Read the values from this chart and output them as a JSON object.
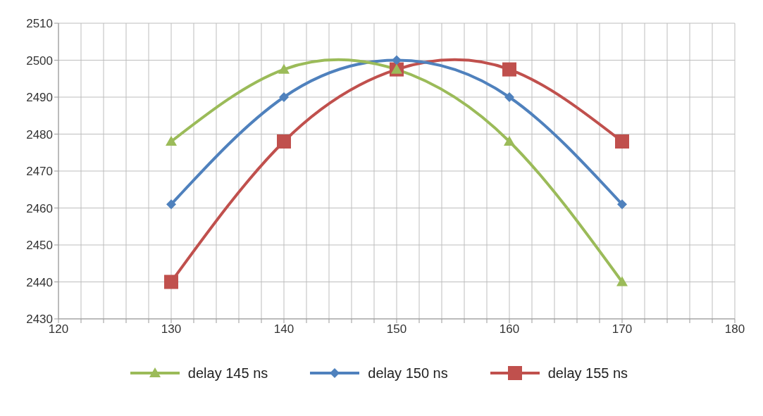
{
  "chart_data": {
    "type": "line",
    "x": [
      130,
      140,
      150,
      160,
      170
    ],
    "series": [
      {
        "name": "delay 145 ns",
        "color": "#9bbb59",
        "marker": "triangle",
        "values": [
          2478,
          2497.5,
          2497.5,
          2478,
          2440
        ]
      },
      {
        "name": "delay 150 ns",
        "color": "#4f81bd",
        "marker": "diamond",
        "values": [
          2461,
          2490,
          2500,
          2490,
          2461
        ]
      },
      {
        "name": "delay 155 ns",
        "color": "#c0504d",
        "marker": "square",
        "values": [
          2440,
          2478,
          2497.5,
          2497.5,
          2478
        ]
      }
    ],
    "xlim": [
      120,
      180
    ],
    "xticks": [
      120,
      {
        "value": 122,
        "label": null
      },
      {
        "value": 124,
        "label": null
      },
      {
        "value": 126,
        "label": null
      },
      {
        "value": 128,
        "label": null
      },
      130,
      {
        "value": 132,
        "label": null
      },
      {
        "value": 134,
        "label": null
      },
      {
        "value": 136,
        "label": null
      },
      {
        "value": 138,
        "label": null
      },
      140,
      {
        "value": 142,
        "label": null
      },
      {
        "value": 144,
        "label": null
      },
      {
        "value": 146,
        "label": null
      },
      {
        "value": 148,
        "label": null
      },
      150,
      {
        "value": 152,
        "label": null
      },
      {
        "value": 154,
        "label": null
      },
      {
        "value": 156,
        "label": null
      },
      {
        "value": 158,
        "label": null
      },
      160,
      {
        "value": 162,
        "label": null
      },
      {
        "value": 164,
        "label": null
      },
      {
        "value": 166,
        "label": null
      },
      {
        "value": 168,
        "label": null
      },
      170,
      {
        "value": 172,
        "label": null
      },
      {
        "value": 174,
        "label": null
      },
      {
        "value": 176,
        "label": null
      },
      {
        "value": 178,
        "label": null
      },
      180
    ],
    "ylim": [
      2430,
      2510
    ],
    "yticks": [
      2430,
      2440,
      2450,
      2460,
      2470,
      2480,
      2490,
      2500,
      2510
    ],
    "grid": true,
    "legend": "bottom",
    "line_style": "solid"
  }
}
